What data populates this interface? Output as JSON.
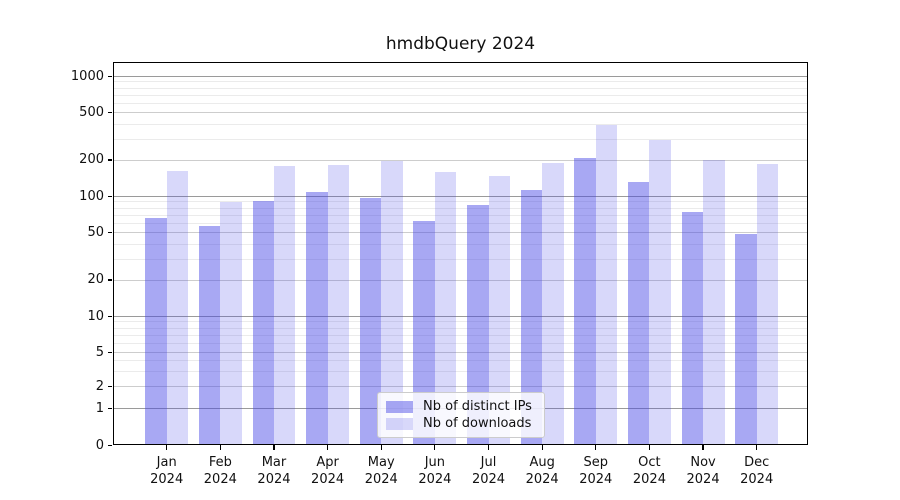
{
  "title": "hmdbQuery 2024",
  "chart_data": {
    "type": "bar",
    "title": "hmdbQuery 2024",
    "xlabel": "",
    "ylabel": "",
    "yscale": "symlog",
    "grid": true,
    "legend_position": "lower center",
    "yticks": [
      0,
      1,
      2,
      5,
      10,
      20,
      50,
      100,
      200,
      500,
      1000
    ],
    "categories": [
      "Jan 2024",
      "Feb 2024",
      "Mar 2024",
      "Apr 2024",
      "May 2024",
      "Jun 2024",
      "Jul 2024",
      "Aug 2024",
      "Sep 2024",
      "Oct 2024",
      "Nov 2024",
      "Dec 2024"
    ],
    "series": [
      {
        "name": "Nb of distinct IPs",
        "color": "rgba(70,70,230,0.47)",
        "values": [
          65,
          56,
          90,
          107,
          97,
          62,
          84,
          112,
          208,
          132,
          73,
          48
        ]
      },
      {
        "name": "Nb of downloads",
        "color": "rgba(70,70,230,0.21)",
        "values": [
          163,
          89,
          178,
          183,
          194,
          158,
          148,
          189,
          390,
          293,
          199,
          184
        ]
      }
    ]
  },
  "colors": {
    "bar_distinct_ips": "rgba(70,70,230,0.47)",
    "bar_downloads": "rgba(70,70,230,0.21)",
    "grid_decade": "#9a9a9a",
    "grid_major": "#cdcdcd",
    "grid_minor": "#ebebeb",
    "spine": "#000000"
  }
}
